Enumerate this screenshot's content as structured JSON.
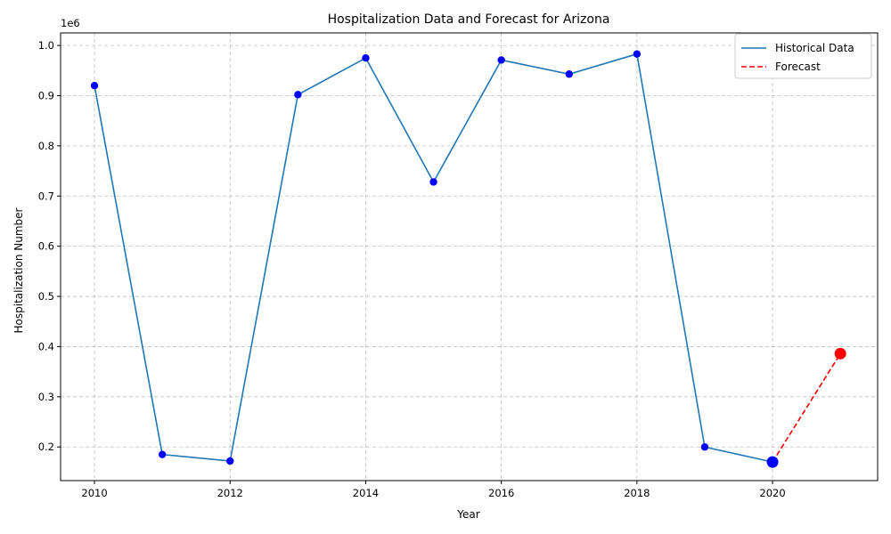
{
  "chart_data": {
    "type": "line",
    "title": "Hospitalization Data and Forecast for Arizona",
    "xlabel": "Year",
    "ylabel": "Hospitalization Number",
    "y_offset_label": "1e6",
    "xlim": [
      2009.5,
      2021.55
    ],
    "ylim": [
      0.133,
      1.025
    ],
    "x_ticks": [
      2010,
      2012,
      2014,
      2016,
      2018,
      2020
    ],
    "y_ticks": [
      0.2,
      0.3,
      0.4,
      0.5,
      0.6,
      0.7,
      0.8,
      0.9,
      1.0
    ],
    "y_tick_labels": [
      "0.2",
      "0.3",
      "0.4",
      "0.5",
      "0.6",
      "0.7",
      "0.8",
      "0.9",
      "1.0"
    ],
    "grid": true,
    "legend_position": "top-right",
    "series": [
      {
        "name": "Historical Data",
        "style": "solid",
        "line_color": "#1f77b4",
        "marker_color": "#0000ff",
        "x": [
          2010,
          2011,
          2012,
          2013,
          2014,
          2015,
          2016,
          2017,
          2018,
          2019,
          2020
        ],
        "y": [
          0.92,
          0.185,
          0.172,
          0.902,
          0.975,
          0.728,
          0.971,
          0.943,
          0.983,
          0.2,
          0.17
        ]
      },
      {
        "name": "Forecast",
        "style": "dashed",
        "line_color": "#ff0000",
        "marker_color": "#ff0000",
        "x": [
          2020,
          2021
        ],
        "y": [
          0.17,
          0.386
        ]
      }
    ],
    "highlight_points": [
      {
        "x": 2020,
        "y": 0.17,
        "color": "#0000ff"
      },
      {
        "x": 2021,
        "y": 0.386,
        "color": "#ff0000"
      }
    ]
  }
}
